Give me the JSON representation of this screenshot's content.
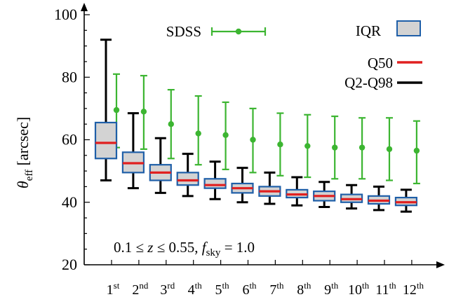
{
  "chart_data": {
    "type": "boxplot",
    "title": "",
    "ylabel": "θ",
    "ylabel_sub": "eff",
    "ylabel_unit": "[arcsec]",
    "xlabel": "",
    "ylim": [
      20,
      105
    ],
    "yticks": [
      20,
      40,
      60,
      80,
      100
    ],
    "annotation": {
      "prefix": "0.1 ≤ ",
      "z": "z",
      "middle": " ≤ 0.55, ",
      "f": "f",
      "fsub": "sky",
      "suffix": " = 1.0"
    },
    "categories": [
      {
        "num": "1",
        "sup": "st"
      },
      {
        "num": "2",
        "sup": "nd"
      },
      {
        "num": "3",
        "sup": "rd"
      },
      {
        "num": "4",
        "sup": "th"
      },
      {
        "num": "5",
        "sup": "th"
      },
      {
        "num": "6",
        "sup": "th"
      },
      {
        "num": "7",
        "sup": "th"
      },
      {
        "num": "8",
        "sup": "th"
      },
      {
        "num": "9",
        "sup": "th"
      },
      {
        "num": "10",
        "sup": "th"
      },
      {
        "num": "11",
        "sup": "th"
      },
      {
        "num": "12",
        "sup": "th"
      }
    ],
    "legend": {
      "iqr": "IQR",
      "q50": "Q50",
      "q2q98": "Q2-Q98",
      "sdss": "SDSS"
    },
    "colors": {
      "box_fill": "#d3d3d3",
      "box_edge": "#1f5fa8",
      "median": "#e02020",
      "whisker": "#000000",
      "sdss": "#3cb531"
    },
    "series": [
      {
        "name": "Q2-Q98 / IQR / Q50",
        "boxes": [
          {
            "low": 47.0,
            "q1": 54.0,
            "median": 59.0,
            "q3": 65.5,
            "high": 92.0
          },
          {
            "low": 44.5,
            "q1": 49.5,
            "median": 52.5,
            "q3": 56.0,
            "high": 68.5
          },
          {
            "low": 43.0,
            "q1": 47.0,
            "median": 49.5,
            "q3": 52.0,
            "high": 60.5
          },
          {
            "low": 42.0,
            "q1": 45.5,
            "median": 47.0,
            "q3": 49.5,
            "high": 55.5
          },
          {
            "low": 41.0,
            "q1": 44.5,
            "median": 45.5,
            "q3": 47.5,
            "high": 53.0
          },
          {
            "low": 40.0,
            "q1": 43.0,
            "median": 44.5,
            "q3": 46.0,
            "high": 51.0
          },
          {
            "low": 39.5,
            "q1": 42.0,
            "median": 43.5,
            "q3": 45.0,
            "high": 49.5
          },
          {
            "low": 39.0,
            "q1": 41.5,
            "median": 42.5,
            "q3": 44.0,
            "high": 48.0
          },
          {
            "low": 38.5,
            "q1": 40.5,
            "median": 42.0,
            "q3": 43.5,
            "high": 46.5
          },
          {
            "low": 38.0,
            "q1": 40.0,
            "median": 41.0,
            "q3": 42.5,
            "high": 45.5
          },
          {
            "low": 37.5,
            "q1": 39.5,
            "median": 40.5,
            "q3": 42.0,
            "high": 45.0
          },
          {
            "low": 37.0,
            "q1": 39.0,
            "median": 40.0,
            "q3": 41.5,
            "high": 44.0
          }
        ]
      },
      {
        "name": "SDSS",
        "points": [
          {
            "value": 69.5,
            "low": 57.5,
            "high": 81.0
          },
          {
            "value": 69.0,
            "low": 57.0,
            "high": 80.5
          },
          {
            "value": 65.0,
            "low": 54.0,
            "high": 76.0
          },
          {
            "value": 62.0,
            "low": 52.0,
            "high": 74.0
          },
          {
            "value": 61.5,
            "low": 50.5,
            "high": 72.0
          },
          {
            "value": 60.0,
            "low": 49.5,
            "high": 70.0
          },
          {
            "value": 58.5,
            "low": 48.5,
            "high": 68.5
          },
          {
            "value": 58.0,
            "low": 48.0,
            "high": 68.0
          },
          {
            "value": 57.5,
            "low": 47.5,
            "high": 67.5
          },
          {
            "value": 57.5,
            "low": 47.5,
            "high": 67.0
          },
          {
            "value": 57.0,
            "low": 47.0,
            "high": 67.0
          },
          {
            "value": 56.5,
            "low": 46.0,
            "high": 66.0
          }
        ]
      }
    ]
  }
}
